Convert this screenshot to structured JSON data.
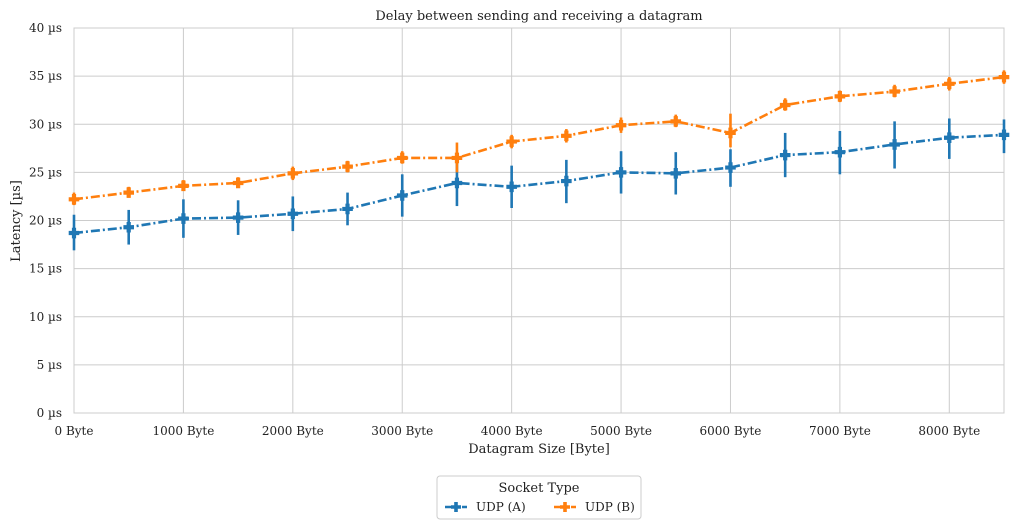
{
  "chart_data": {
    "type": "line",
    "title": "Delay between sending and receiving a datagram",
    "xlabel": "Datagram Size [Byte]",
    "ylabel": "Latency [µs]",
    "xlim": [
      0,
      8500
    ],
    "ylim": [
      0,
      40
    ],
    "grid": true,
    "x_ticks": [
      {
        "value": 0,
        "label": "0 Byte"
      },
      {
        "value": 1000,
        "label": "1000 Byte"
      },
      {
        "value": 2000,
        "label": "2000 Byte"
      },
      {
        "value": 3000,
        "label": "3000 Byte"
      },
      {
        "value": 4000,
        "label": "4000 Byte"
      },
      {
        "value": 5000,
        "label": "5000 Byte"
      },
      {
        "value": 6000,
        "label": "6000 Byte"
      },
      {
        "value": 7000,
        "label": "7000 Byte"
      },
      {
        "value": 8000,
        "label": "8000 Byte"
      }
    ],
    "y_ticks": [
      {
        "value": 0,
        "label": "0 µs"
      },
      {
        "value": 5,
        "label": "5 µs"
      },
      {
        "value": 10,
        "label": "10 µs"
      },
      {
        "value": 15,
        "label": "15 µs"
      },
      {
        "value": 20,
        "label": "20 µs"
      },
      {
        "value": 25,
        "label": "25 µs"
      },
      {
        "value": 30,
        "label": "30 µs"
      },
      {
        "value": 35,
        "label": "35 µs"
      },
      {
        "value": 40,
        "label": "40 µs"
      }
    ],
    "x": [
      0,
      500,
      1000,
      1500,
      2000,
      2500,
      3000,
      3500,
      4000,
      4500,
      5000,
      5500,
      6000,
      6500,
      7000,
      7500,
      8000,
      8500
    ],
    "legend": {
      "title": "Socket Type",
      "placement": "bottom-center"
    },
    "series": [
      {
        "name": "UDP (A)",
        "color": "#1f77b4",
        "values": [
          18.7,
          19.3,
          20.2,
          20.3,
          20.7,
          21.2,
          22.6,
          23.9,
          23.5,
          24.1,
          25.0,
          24.9,
          25.5,
          26.8,
          27.1,
          27.9,
          28.6,
          28.9
        ],
        "err_low": [
          16.9,
          17.5,
          18.2,
          18.5,
          18.9,
          19.5,
          20.4,
          21.5,
          21.3,
          21.8,
          22.8,
          22.7,
          23.5,
          24.5,
          24.8,
          25.4,
          26.4,
          27.0
        ],
        "err_high": [
          20.6,
          21.1,
          22.2,
          22.1,
          22.5,
          22.9,
          24.8,
          26.3,
          25.7,
          26.3,
          27.2,
          27.1,
          27.4,
          29.1,
          29.3,
          30.3,
          30.6,
          30.5
        ]
      },
      {
        "name": "UDP (B)",
        "color": "#ff7f0e",
        "values": [
          22.2,
          22.9,
          23.6,
          23.9,
          24.9,
          25.6,
          26.5,
          26.5,
          28.2,
          28.8,
          29.9,
          30.3,
          29.1,
          32.0,
          32.9,
          33.4,
          34.2,
          34.9
        ],
        "err_low": [
          21.6,
          22.4,
          23.1,
          23.4,
          24.2,
          25.0,
          25.9,
          25.0,
          27.5,
          28.1,
          29.1,
          29.7,
          27.6,
          31.4,
          32.3,
          32.8,
          33.5,
          34.2
        ],
        "err_high": [
          22.9,
          23.5,
          24.2,
          24.5,
          25.6,
          26.2,
          27.2,
          28.1,
          28.9,
          29.5,
          30.7,
          31.0,
          31.1,
          32.7,
          33.5,
          34.1,
          34.9,
          35.6
        ]
      }
    ]
  }
}
